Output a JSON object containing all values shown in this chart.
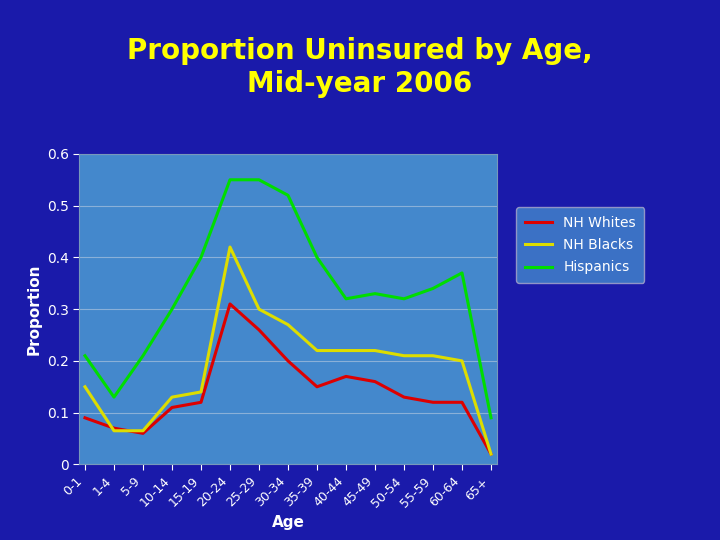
{
  "title": "Proportion Uninsured by Age,\nMid-year 2006",
  "xlabel": "Age",
  "ylabel": "Proportion",
  "age_groups": [
    "0-1",
    "1-4",
    "5-9",
    "10-14",
    "15-19",
    "20-24",
    "25-29",
    "30-34",
    "35-39",
    "40-44",
    "45-49",
    "50-54",
    "55-59",
    "60-64",
    "65+"
  ],
  "nh_whites": [
    0.09,
    0.07,
    0.06,
    0.11,
    0.12,
    0.31,
    0.26,
    0.2,
    0.15,
    0.17,
    0.16,
    0.13,
    0.12,
    0.12,
    0.02
  ],
  "nh_blacks": [
    0.15,
    0.065,
    0.065,
    0.13,
    0.14,
    0.42,
    0.3,
    0.27,
    0.22,
    0.22,
    0.22,
    0.21,
    0.21,
    0.2,
    0.02
  ],
  "hispanics": [
    0.21,
    0.13,
    0.21,
    0.3,
    0.4,
    0.55,
    0.55,
    0.52,
    0.4,
    0.32,
    0.33,
    0.32,
    0.34,
    0.37,
    0.09
  ],
  "color_whites": "#dd0000",
  "color_blacks": "#dddd00",
  "color_hispanics": "#00dd00",
  "bg_color_outer": "#1a1aaa",
  "bg_color_plot": "#4488cc",
  "title_color": "#ffff00",
  "axis_label_color": "#ffffff",
  "tick_label_color": "#ffffff",
  "separator_color": "#aaccee",
  "legend_labels": [
    "NH Whites",
    "NH Blacks",
    "Hispanics"
  ],
  "legend_text_color": "#ffffff",
  "legend_bg": "#4488cc",
  "legend_edge": "#aaaacc",
  "ylim": [
    0,
    0.6
  ],
  "yticks": [
    0,
    0.1,
    0.2,
    0.3,
    0.4,
    0.5,
    0.6
  ],
  "grid_color": "#8ab0d8",
  "line_width": 2.2,
  "title_fontsize": 20,
  "axis_label_fontsize": 11,
  "tick_fontsize": 9
}
